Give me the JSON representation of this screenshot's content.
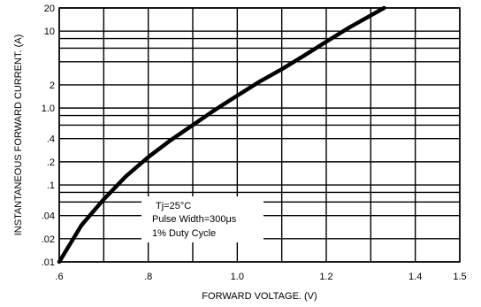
{
  "chart_data": {
    "type": "line",
    "xlabel": "FORWARD VOLTAGE. (V)",
    "ylabel": "INSTANTANEOUS FORWARD CURRENT. (A)",
    "xlim": [
      0.6,
      1.5
    ],
    "ylim": [
      0.01,
      20
    ],
    "y_scale": "log",
    "grid": true,
    "x_ticks": [
      0.6,
      0.8,
      1.0,
      1.2,
      1.4,
      1.5
    ],
    "x_tick_labels": [
      ".6",
      ".8",
      "1.0",
      "1.2",
      "1.4",
      "1.5"
    ],
    "y_ticks": [
      0.01,
      0.02,
      0.04,
      0.1,
      0.2,
      0.4,
      1.0,
      2,
      10,
      20
    ],
    "y_tick_labels": [
      ".01",
      ".02",
      ".04",
      ".1",
      ".2",
      ".4",
      "1.0",
      "2",
      "10",
      "20"
    ],
    "y_gridlines": [
      0.01,
      0.02,
      0.04,
      0.06,
      0.08,
      0.1,
      0.2,
      0.4,
      0.6,
      0.8,
      1.0,
      2,
      4,
      6,
      8,
      10,
      20
    ],
    "annotations": [
      "Tj=25°C",
      "Pulse Width=300μs",
      "1% Duty Cycle"
    ],
    "series": [
      {
        "x": [
          0.6,
          0.65,
          0.7,
          0.75,
          0.8,
          0.85,
          0.9,
          0.95,
          1.0,
          1.05,
          1.1,
          1.15,
          1.2,
          1.25,
          1.3,
          1.33
        ],
        "y": [
          0.01,
          0.03,
          0.065,
          0.13,
          0.23,
          0.38,
          0.6,
          0.95,
          1.45,
          2.2,
          3.2,
          4.8,
          7.3,
          11.0,
          16.0,
          20.0
        ]
      }
    ]
  }
}
